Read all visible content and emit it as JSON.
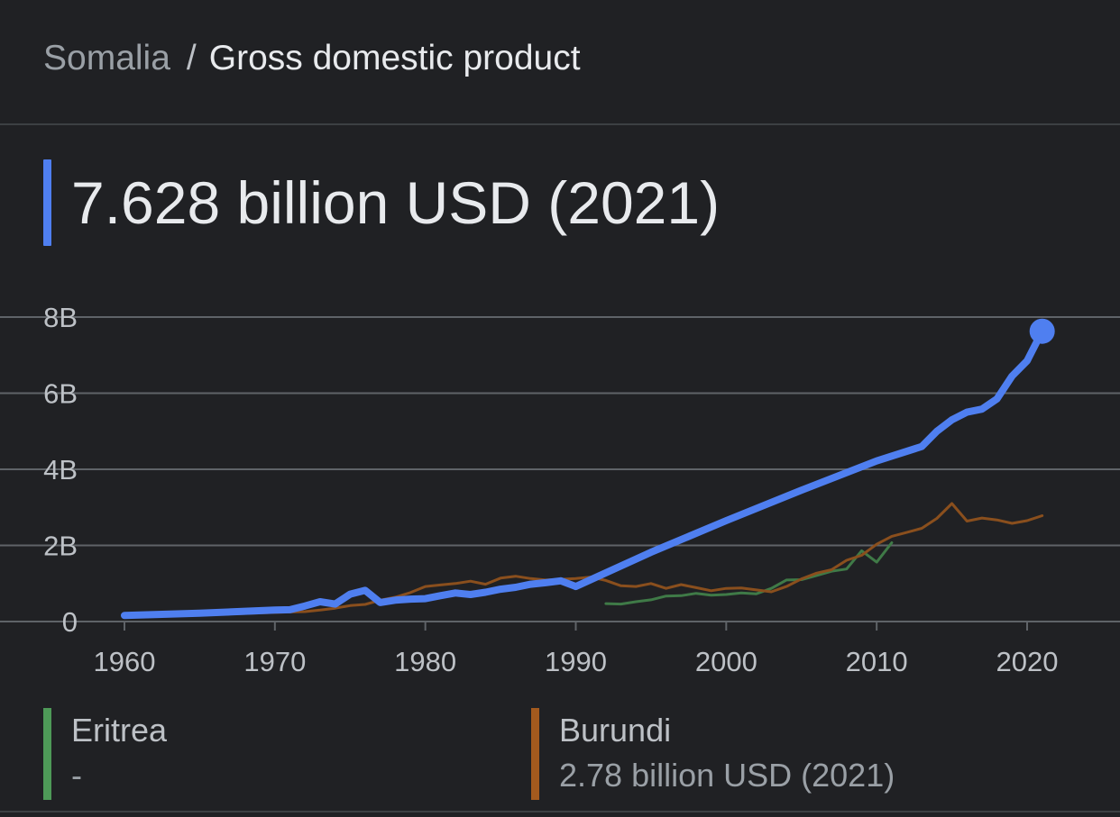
{
  "breadcrumb": {
    "parent": "Somalia",
    "separator": "/",
    "current": "Gross domestic product"
  },
  "headline": {
    "value": "7.628 billion USD (2021)",
    "accent_color": "#4f7ff0"
  },
  "legend": [
    {
      "name": "Eritrea",
      "value": "-",
      "color": "#4e9a58"
    },
    {
      "name": "Burundi",
      "value": "2.78 billion USD (2021)",
      "color": "#a35a1e"
    }
  ],
  "chart_data": {
    "type": "line",
    "xlabel": "",
    "ylabel": "",
    "xlim": [
      1960,
      2026
    ],
    "ylim": [
      0,
      8
    ],
    "x_ticks": [
      1960,
      1970,
      1980,
      1990,
      2000,
      2010,
      2020
    ],
    "x_tick_labels": [
      "1960",
      "1970",
      "1980",
      "1990",
      "2000",
      "2010",
      "2020"
    ],
    "y_ticks": [
      0,
      2,
      4,
      6,
      8
    ],
    "y_tick_labels": [
      "0",
      "2B",
      "4B",
      "6B",
      "8B"
    ],
    "grid": true,
    "unit": "billion USD",
    "series": [
      {
        "name": "Somalia",
        "color": "#4f7ff0",
        "highlight_last_point": true,
        "points": [
          [
            1960,
            0.16
          ],
          [
            1965,
            0.22
          ],
          [
            1970,
            0.3
          ],
          [
            1971,
            0.31
          ],
          [
            1972,
            0.41
          ],
          [
            1973,
            0.52
          ],
          [
            1974,
            0.46
          ],
          [
            1975,
            0.72
          ],
          [
            1976,
            0.82
          ],
          [
            1977,
            0.5
          ],
          [
            1978,
            0.56
          ],
          [
            1979,
            0.59
          ],
          [
            1980,
            0.6
          ],
          [
            1981,
            0.68
          ],
          [
            1982,
            0.75
          ],
          [
            1983,
            0.71
          ],
          [
            1984,
            0.77
          ],
          [
            1985,
            0.85
          ],
          [
            1986,
            0.9
          ],
          [
            1987,
            0.98
          ],
          [
            1988,
            1.02
          ],
          [
            1989,
            1.07
          ],
          [
            1990,
            0.92
          ],
          [
            1995,
            1.82
          ],
          [
            2000,
            2.65
          ],
          [
            2005,
            3.45
          ],
          [
            2010,
            4.22
          ],
          [
            2013,
            4.6
          ],
          [
            2014,
            5.0
          ],
          [
            2015,
            5.3
          ],
          [
            2016,
            5.5
          ],
          [
            2017,
            5.58
          ],
          [
            2018,
            5.85
          ],
          [
            2019,
            6.45
          ],
          [
            2020,
            6.85
          ],
          [
            2021,
            7.628
          ]
        ]
      },
      {
        "name": "Eritrea",
        "color": "#3f7a47",
        "points": [
          [
            1992,
            0.47
          ],
          [
            1993,
            0.46
          ],
          [
            1994,
            0.52
          ],
          [
            1995,
            0.57
          ],
          [
            1996,
            0.67
          ],
          [
            1997,
            0.68
          ],
          [
            1998,
            0.74
          ],
          [
            1999,
            0.69
          ],
          [
            2000,
            0.71
          ],
          [
            2001,
            0.75
          ],
          [
            2002,
            0.73
          ],
          [
            2003,
            0.87
          ],
          [
            2004,
            1.09
          ],
          [
            2005,
            1.1
          ],
          [
            2006,
            1.21
          ],
          [
            2007,
            1.32
          ],
          [
            2008,
            1.38
          ],
          [
            2009,
            1.86
          ],
          [
            2010,
            1.56
          ],
          [
            2011,
            2.07
          ]
        ]
      },
      {
        "name": "Burundi",
        "color": "#8a4f1d",
        "points": [
          [
            1960,
            0.2
          ],
          [
            1965,
            0.17
          ],
          [
            1970,
            0.24
          ],
          [
            1971,
            0.25
          ],
          [
            1972,
            0.26
          ],
          [
            1973,
            0.3
          ],
          [
            1974,
            0.35
          ],
          [
            1975,
            0.42
          ],
          [
            1976,
            0.45
          ],
          [
            1977,
            0.56
          ],
          [
            1978,
            0.64
          ],
          [
            1979,
            0.76
          ],
          [
            1980,
            0.92
          ],
          [
            1981,
            0.96
          ],
          [
            1982,
            1.0
          ],
          [
            1983,
            1.06
          ],
          [
            1984,
            0.98
          ],
          [
            1985,
            1.14
          ],
          [
            1986,
            1.19
          ],
          [
            1987,
            1.13
          ],
          [
            1988,
            1.09
          ],
          [
            1989,
            1.11
          ],
          [
            1990,
            1.13
          ],
          [
            1991,
            1.17
          ],
          [
            1992,
            1.08
          ],
          [
            1993,
            0.94
          ],
          [
            1994,
            0.92
          ],
          [
            1995,
            1.0
          ],
          [
            1996,
            0.87
          ],
          [
            1997,
            0.97
          ],
          [
            1998,
            0.89
          ],
          [
            1999,
            0.81
          ],
          [
            2000,
            0.87
          ],
          [
            2001,
            0.88
          ],
          [
            2002,
            0.83
          ],
          [
            2003,
            0.78
          ],
          [
            2004,
            0.92
          ],
          [
            2005,
            1.12
          ],
          [
            2006,
            1.27
          ],
          [
            2007,
            1.36
          ],
          [
            2008,
            1.61
          ],
          [
            2009,
            1.74
          ],
          [
            2010,
            2.03
          ],
          [
            2011,
            2.24
          ],
          [
            2012,
            2.34
          ],
          [
            2013,
            2.45
          ],
          [
            2014,
            2.71
          ],
          [
            2015,
            3.1
          ],
          [
            2016,
            2.64
          ],
          [
            2017,
            2.72
          ],
          [
            2018,
            2.67
          ],
          [
            2019,
            2.58
          ],
          [
            2020,
            2.65
          ],
          [
            2021,
            2.78
          ]
        ]
      }
    ]
  }
}
